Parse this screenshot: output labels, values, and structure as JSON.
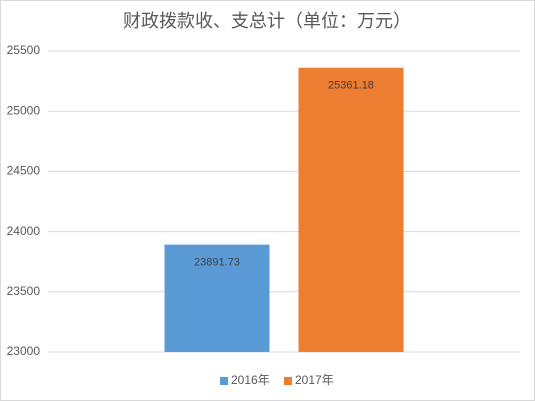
{
  "chart_data": {
    "type": "bar",
    "title": "财政拨款收、支总计（单位：万元）",
    "categories": [
      null
    ],
    "series": [
      {
        "name": "2016年",
        "color": "#5b9bd5",
        "values": [
          23891.73
        ]
      },
      {
        "name": "2017年",
        "color": "#ed7d31",
        "values": [
          25361.18
        ]
      }
    ],
    "ylim": [
      23000,
      25500
    ],
    "yticks": [
      23000,
      23500,
      24000,
      24500,
      25000,
      25500
    ],
    "grid": true,
    "legend": "bottom"
  }
}
